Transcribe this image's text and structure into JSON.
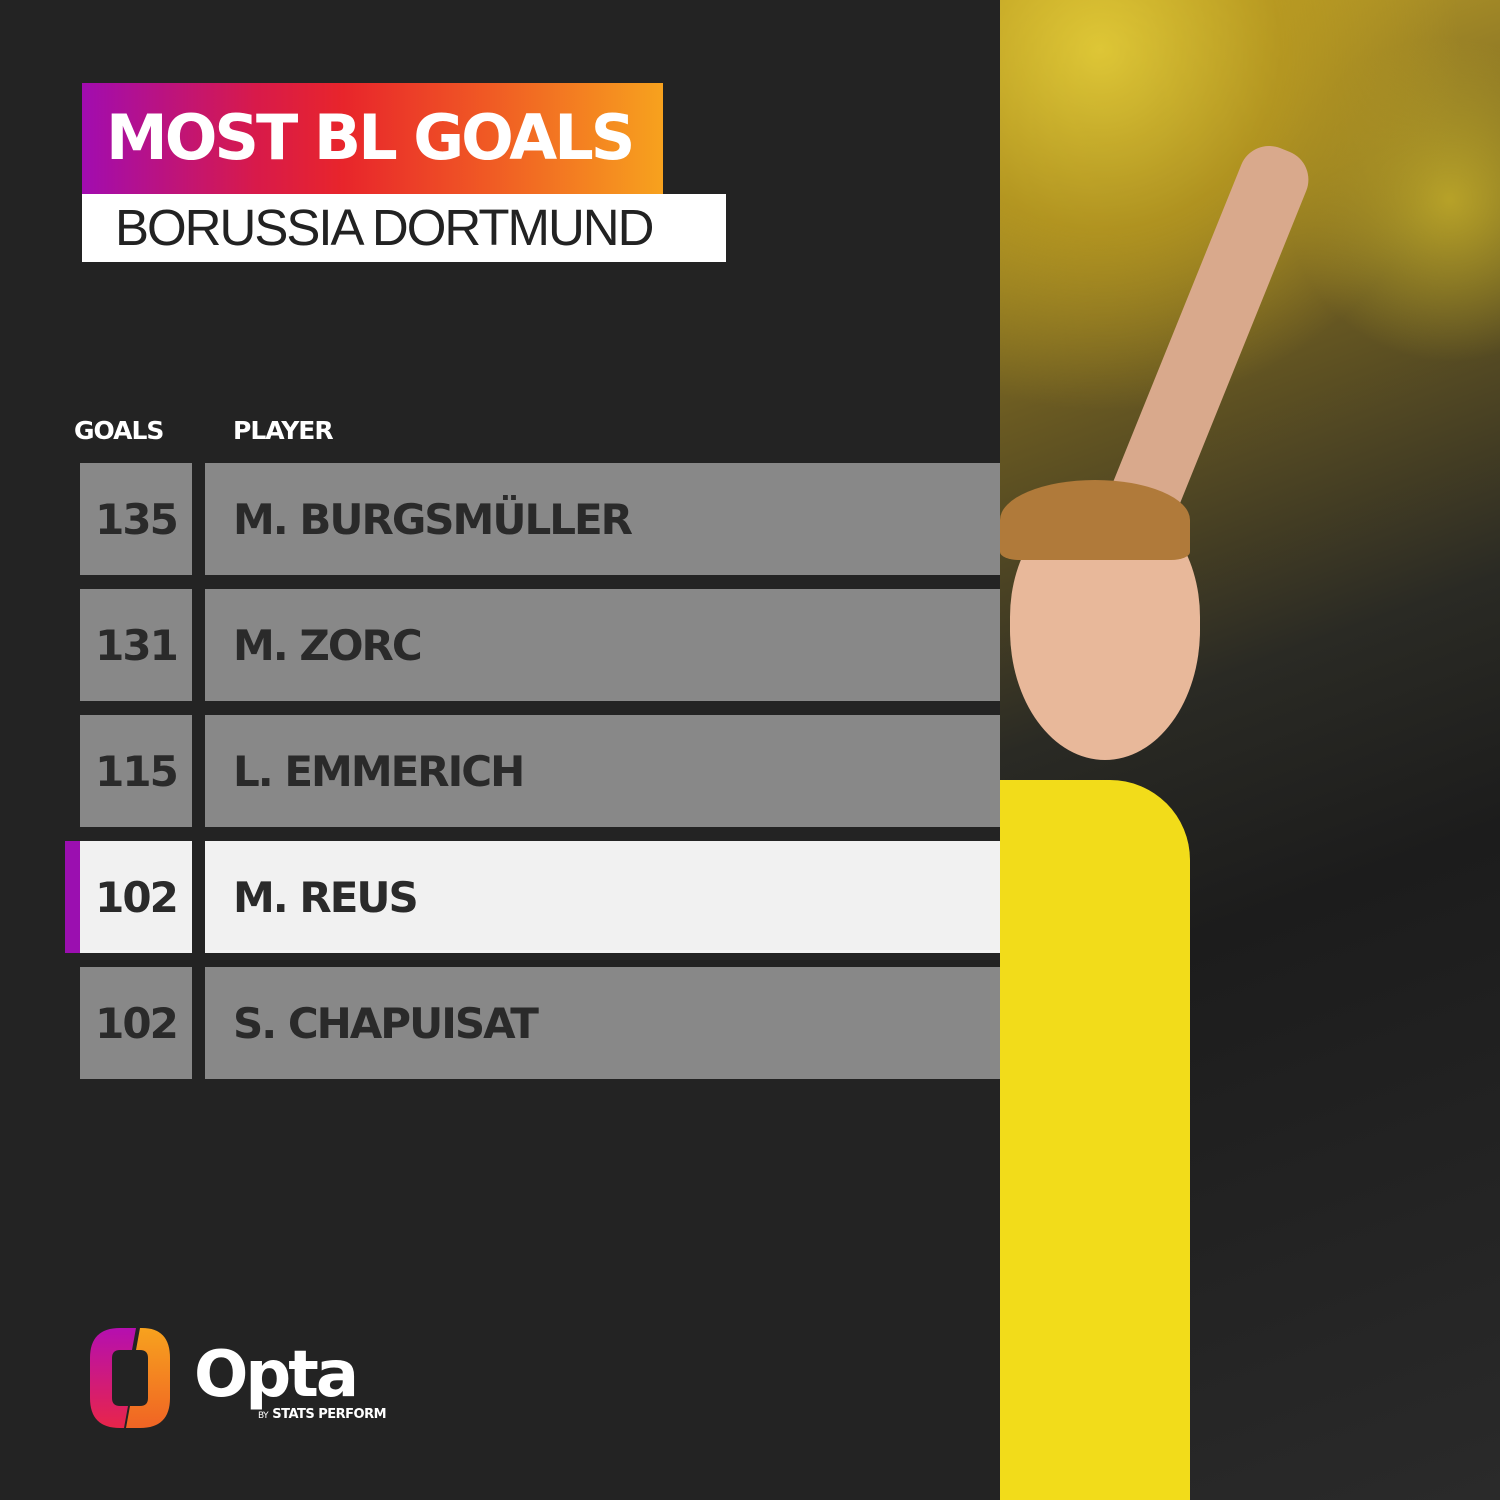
{
  "header": {
    "title": "MOST BL GOALS",
    "subtitle": "BORUSSIA DORTMUND"
  },
  "chart_data": {
    "type": "table",
    "columns": [
      "GOALS",
      "PLAYER"
    ],
    "rows": [
      {
        "goals": "135",
        "player": "M. BURGSMÜLLER",
        "highlight": false
      },
      {
        "goals": "131",
        "player": "M. ZORC",
        "highlight": false
      },
      {
        "goals": "115",
        "player": "L. EMMERICH",
        "highlight": false
      },
      {
        "goals": "102",
        "player": "M. REUS",
        "highlight": true
      },
      {
        "goals": "102",
        "player": "S. CHAPUISAT",
        "highlight": false
      }
    ],
    "colors": {
      "row": "#888888",
      "highlight_row": "#f1f1f1",
      "highlight_marker": "#9b0fb0",
      "background": "#232323"
    }
  },
  "brand": {
    "name": "Opta",
    "tagline_by": "BY",
    "tagline": "STATS PERFORM"
  }
}
